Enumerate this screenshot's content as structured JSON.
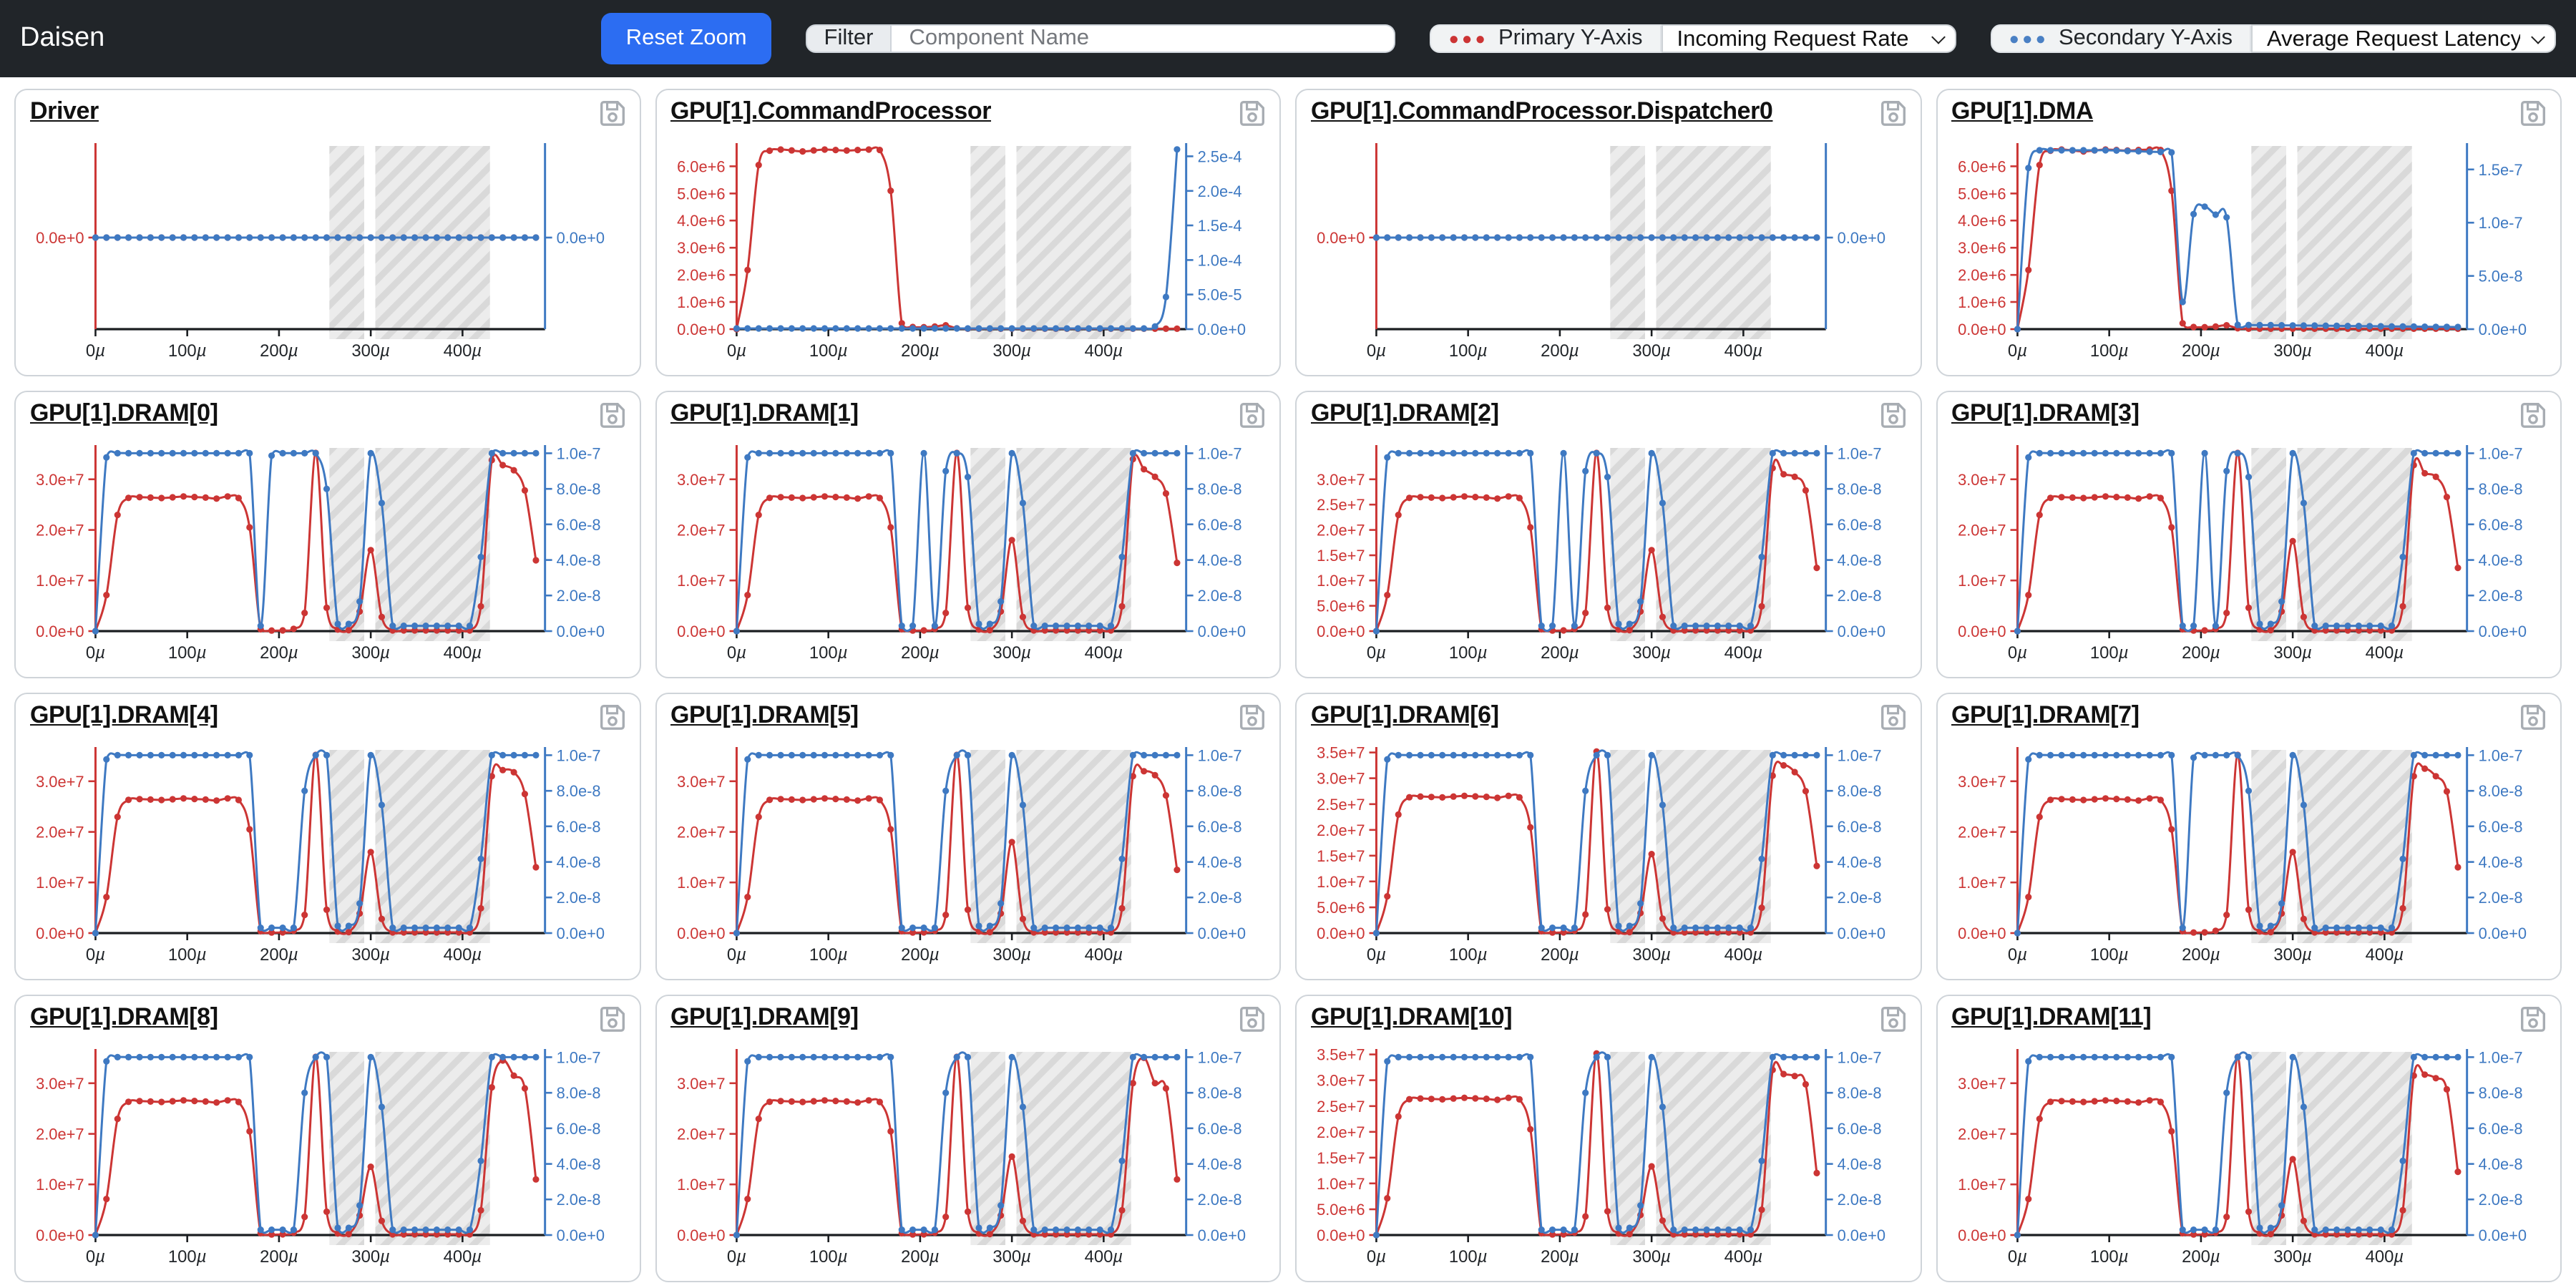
{
  "header": {
    "brand": "Daisen",
    "reset_zoom_label": "Reset Zoom",
    "filter_label": "Filter",
    "filter_placeholder": "Component Name",
    "series_dots": "●●●",
    "primary_label": "Primary Y-Axis",
    "primary_selected": "Incoming Request Rate",
    "secondary_label": "Secondary Y-Axis",
    "secondary_selected": "Average Request Latency",
    "colors": {
      "navbar_bg": "#212529",
      "accent_button": "#2c6df2",
      "primary_series": "#cc3534",
      "secondary_series": "#3e79c2"
    }
  },
  "chart_data": {
    "type": "line",
    "x_unit": "µs",
    "x_domain": [
      0,
      490
    ],
    "x_data_max": 480,
    "sample_step": 12,
    "x_ticks": [
      {
        "v": 0,
        "label": "0µ"
      },
      {
        "v": 100,
        "label": "100µ"
      },
      {
        "v": 200,
        "label": "200µ"
      },
      {
        "v": 300,
        "label": "300µ"
      },
      {
        "v": 400,
        "label": "400µ"
      }
    ],
    "highlight_bands": [
      [
        255,
        293
      ],
      [
        305,
        430
      ]
    ],
    "tick_sets": {
      "zero": [
        [
          0,
          "0.0e+0"
        ]
      ],
      "cp_red": [
        [
          0,
          "0.0e+0"
        ],
        [
          1000000.0,
          "1.0e+6"
        ],
        [
          2000000.0,
          "2.0e+6"
        ],
        [
          3000000.0,
          "3.0e+6"
        ],
        [
          4000000.0,
          "4.0e+6"
        ],
        [
          5000000.0,
          "5.0e+6"
        ],
        [
          6000000.0,
          "6.0e+6"
        ]
      ],
      "cp_blue": [
        [
          0,
          "0.0e+0"
        ],
        [
          5e-05,
          "5.0e-5"
        ],
        [
          0.0001,
          "1.0e-4"
        ],
        [
          0.00015,
          "1.5e-4"
        ],
        [
          0.0002,
          "2.0e-4"
        ],
        [
          0.00025,
          "2.5e-4"
        ]
      ],
      "dma_blue": [
        [
          0,
          "0.0e+0"
        ],
        [
          5e-08,
          "5.0e-8"
        ],
        [
          1e-07,
          "1.0e-7"
        ],
        [
          1.5e-07,
          "1.5e-7"
        ]
      ],
      "dram_sparse": [
        [
          0,
          "0.0e+0"
        ],
        [
          10000000.0,
          "1.0e+7"
        ],
        [
          20000000.0,
          "2.0e+7"
        ],
        [
          30000000.0,
          "3.0e+7"
        ]
      ],
      "dram_dense30": [
        [
          0,
          "0.0e+0"
        ],
        [
          5000000.0,
          "5.0e+6"
        ],
        [
          10000000.0,
          "1.0e+7"
        ],
        [
          15000000.0,
          "1.5e+7"
        ],
        [
          20000000.0,
          "2.0e+7"
        ],
        [
          25000000.0,
          "2.5e+7"
        ],
        [
          30000000.0,
          "3.0e+7"
        ]
      ],
      "dram_dense35": [
        [
          0,
          "0.0e+0"
        ],
        [
          5000000.0,
          "5.0e+6"
        ],
        [
          10000000.0,
          "1.0e+7"
        ],
        [
          15000000.0,
          "1.5e+7"
        ],
        [
          20000000.0,
          "2.0e+7"
        ],
        [
          25000000.0,
          "2.5e+7"
        ],
        [
          30000000.0,
          "3.0e+7"
        ],
        [
          35000000.0,
          "3.5e+7"
        ]
      ],
      "dram_blue": [
        [
          0,
          "0.0e+0"
        ],
        [
          2e-08,
          "2.0e-8"
        ],
        [
          4e-08,
          "4.0e-8"
        ],
        [
          6e-08,
          "6.0e-8"
        ],
        [
          8e-08,
          "8.0e-8"
        ],
        [
          1e-07,
          "1.0e-7"
        ]
      ]
    },
    "series_sets": {
      "zero": [
        [
          0,
          0
        ],
        [
          480,
          0
        ]
      ],
      "cp_red": [
        [
          0,
          0
        ],
        [
          8,
          100000.0
        ],
        [
          18,
          5300000.0
        ],
        [
          28,
          6550000.0
        ],
        [
          48,
          6620000.0
        ],
        [
          72,
          6550000.0
        ],
        [
          96,
          6620000.0
        ],
        [
          120,
          6580000.0
        ],
        [
          144,
          6620000.0
        ],
        [
          156,
          6600000.0
        ],
        [
          168,
          5100000.0
        ],
        [
          176,
          300000.0
        ],
        [
          186,
          90000.0
        ],
        [
          200,
          70000.0
        ],
        [
          214,
          80000.0
        ],
        [
          226,
          170000.0
        ],
        [
          234,
          60000.0
        ],
        [
          244,
          15000.0
        ],
        [
          480,
          15000.0
        ]
      ],
      "cp_blue": [
        [
          0,
          1e-06
        ],
        [
          444,
          1e-06
        ],
        [
          456,
          4e-06
        ],
        [
          466,
          2.5e-05
        ],
        [
          472,
          9e-05
        ],
        [
          477,
          0.00019
        ],
        [
          480,
          0.00026
        ]
      ],
      "dma_blue": [
        [
          0,
          0
        ],
        [
          8,
          1.3e-07
        ],
        [
          14,
          1.62e-07
        ],
        [
          24,
          1.68e-07
        ],
        [
          96,
          1.68e-07
        ],
        [
          168,
          1.66e-07
        ],
        [
          174,
          8e-08
        ],
        [
          178,
          4e-09
        ],
        [
          186,
          9e-08
        ],
        [
          192,
          1.08e-07
        ],
        [
          204,
          1.15e-07
        ],
        [
          210,
          1.07e-07
        ],
        [
          222,
          1.08e-07
        ],
        [
          230,
          1.04e-07
        ],
        [
          236,
          4e-08
        ],
        [
          240,
          4e-09
        ],
        [
          480,
          2e-09
        ]
      ],
      "dram_red": [
        [
          0,
          0
        ],
        [
          8,
          300000.0
        ],
        [
          20,
          20800000.0
        ],
        [
          30,
          26200000.0
        ],
        [
          44,
          26500000.0
        ],
        [
          72,
          26300000.0
        ],
        [
          96,
          26600000.0
        ],
        [
          120,
          26400000.0
        ],
        [
          132,
          26200000.0
        ],
        [
          144,
          26600000.0
        ],
        [
          156,
          26300000.0
        ],
        [
          168,
          20500000.0
        ],
        [
          178,
          400000.0
        ],
        [
          192,
          100000.0
        ],
        [
          204,
          150000.0
        ],
        [
          214,
          200000.0
        ],
        [
          224,
          1500000.0
        ],
        [
          228,
          3600000.0
        ],
        [
          240,
          35200000.0
        ],
        [
          252,
          4600000.0
        ],
        [
          258,
          1500000.0
        ],
        [
          264,
          300000.0
        ],
        [
          276,
          200000.0
        ],
        [
          286,
          2500000.0
        ],
        [
          294,
          8000000.0
        ],
        [
          300,
          16000000.0
        ],
        [
          306,
          8000000.0
        ],
        [
          312,
          2800000.0
        ],
        [
          320,
          150000.0
        ],
        [
          408,
          150000.0
        ],
        [
          416,
          800000.0
        ],
        [
          424,
          9000000.0
        ],
        [
          432,
          33000000.0
        ],
        [
          444,
          33000000.0
        ],
        [
          456,
          31000000.0
        ],
        [
          468,
          28000000.0
        ],
        [
          480,
          13000000.0
        ]
      ],
      "dram_blue_a": [
        [
          0,
          0
        ],
        [
          9,
          9.6e-08
        ],
        [
          16,
          1e-07
        ],
        [
          170,
          1e-07
        ],
        [
          176,
          3e-09
        ],
        [
          184,
          3e-09
        ],
        [
          190,
          9.8e-08
        ],
        [
          196,
          1e-07
        ],
        [
          248,
          1e-07
        ],
        [
          254,
          7e-08
        ],
        [
          259,
          4e-09
        ],
        [
          287,
          4e-09
        ],
        [
          293,
          8e-08
        ],
        [
          298,
          1e-07
        ],
        [
          310,
          1e-07
        ],
        [
          315,
          3e-08
        ],
        [
          319,
          3e-09
        ],
        [
          413,
          3e-09
        ],
        [
          419,
          3e-08
        ],
        [
          425,
          1e-07
        ],
        [
          480,
          1e-07
        ]
      ],
      "dram_blue_b": [
        [
          0,
          0
        ],
        [
          9,
          9.6e-08
        ],
        [
          16,
          1e-07
        ],
        [
          170,
          1e-07
        ],
        [
          176,
          3e-09
        ],
        [
          198,
          3e-09
        ],
        [
          204,
          1e-07
        ],
        [
          210,
          3e-09
        ],
        [
          222,
          3e-09
        ],
        [
          228,
          9e-08
        ],
        [
          233,
          1e-07
        ],
        [
          250,
          1e-07
        ],
        [
          256,
          6e-08
        ],
        [
          261,
          4e-09
        ],
        [
          287,
          4e-09
        ],
        [
          293,
          8e-08
        ],
        [
          298,
          1e-07
        ],
        [
          310,
          1e-07
        ],
        [
          315,
          3e-08
        ],
        [
          319,
          3e-09
        ],
        [
          413,
          3e-09
        ],
        [
          419,
          3e-08
        ],
        [
          425,
          1e-07
        ],
        [
          480,
          1e-07
        ]
      ],
      "dram_blue_c": [
        [
          0,
          0
        ],
        [
          9,
          9.6e-08
        ],
        [
          16,
          1e-07
        ],
        [
          170,
          1e-07
        ],
        [
          176,
          3e-09
        ],
        [
          222,
          3e-09
        ],
        [
          228,
          8e-08
        ],
        [
          233,
          1e-07
        ],
        [
          252,
          1e-07
        ],
        [
          257,
          6e-08
        ],
        [
          262,
          4e-09
        ],
        [
          287,
          4e-09
        ],
        [
          293,
          8e-08
        ],
        [
          298,
          1e-07
        ],
        [
          310,
          1e-07
        ],
        [
          315,
          3e-08
        ],
        [
          319,
          3e-09
        ],
        [
          413,
          3e-09
        ],
        [
          419,
          3e-08
        ],
        [
          425,
          1e-07
        ],
        [
          480,
          1e-07
        ]
      ]
    },
    "panels": [
      {
        "title": "Driver",
        "red": {
          "series": "zero",
          "max": 0,
          "ticks": "zero"
        },
        "blue": {
          "series": "zero",
          "max": 0,
          "ticks": "zero"
        }
      },
      {
        "title": "GPU[1].CommandProcessor",
        "red": {
          "series": "cp_red",
          "max": 6750000.0,
          "ticks": "cp_red"
        },
        "blue": {
          "series": "cp_blue",
          "max": 0.000265,
          "ticks": "cp_blue"
        }
      },
      {
        "title": "GPU[1].CommandProcessor.Dispatcher0",
        "red": {
          "series": "zero",
          "max": 0,
          "ticks": "zero"
        },
        "blue": {
          "series": "zero",
          "max": 0,
          "ticks": "zero"
        }
      },
      {
        "title": "GPU[1].DMA",
        "red": {
          "series": "cp_red",
          "max": 6750000.0,
          "ticks": "cp_red"
        },
        "blue": {
          "series": "dma_blue",
          "max": 1.72e-07,
          "ticks": "dma_blue"
        }
      },
      {
        "title": "GPU[1].DRAM[0]",
        "red": {
          "series": "dram_red",
          "max": 36200000.0,
          "ticks": "dram_sparse",
          "mid": 16000000.0,
          "end": [
            33800000.0,
            32800000.0,
            31800000.0,
            27800000.0,
            14000000.0
          ]
        },
        "blue": {
          "series": "dram_blue_a",
          "max": 1.03e-07,
          "ticks": "dram_blue"
        }
      },
      {
        "title": "GPU[1].DRAM[1]",
        "red": {
          "series": "dram_red",
          "max": 36200000.0,
          "ticks": "dram_sparse",
          "mid": 18000000.0,
          "end": [
            34000000.0,
            32000000.0,
            30500000.0,
            27200000.0,
            13500000.0
          ]
        },
        "blue": {
          "series": "dram_blue_b",
          "max": 1.03e-07,
          "ticks": "dram_blue"
        }
      },
      {
        "title": "GPU[1].DRAM[2]",
        "red": {
          "series": "dram_red",
          "max": 36200000.0,
          "ticks": "dram_dense30",
          "mid": 16000000.0,
          "end": [
            32200000.0,
            31000000.0,
            30500000.0,
            27800000.0,
            12500000.0
          ]
        },
        "blue": {
          "series": "dram_blue_b",
          "max": 1.03e-07,
          "ticks": "dram_blue"
        }
      },
      {
        "title": "GPU[1].DRAM[3]",
        "red": {
          "series": "dram_red",
          "max": 36200000.0,
          "ticks": "dram_sparse",
          "mid": 17800000.0,
          "end": [
            32800000.0,
            31200000.0,
            30500000.0,
            26500000.0,
            12500000.0
          ]
        },
        "blue": {
          "series": "dram_blue_b",
          "max": 1.03e-07,
          "ticks": "dram_blue"
        }
      },
      {
        "title": "GPU[1].DRAM[4]",
        "red": {
          "series": "dram_red",
          "max": 36200000.0,
          "ticks": "dram_sparse",
          "mid": 16000000.0,
          "end": [
            31000000.0,
            32200000.0,
            31800000.0,
            27500000.0,
            13000000.0
          ]
        },
        "blue": {
          "series": "dram_blue_c",
          "max": 1.03e-07,
          "ticks": "dram_blue"
        }
      },
      {
        "title": "GPU[1].DRAM[5]",
        "red": {
          "series": "dram_red",
          "max": 36200000.0,
          "ticks": "dram_sparse",
          "mid": 18000000.0,
          "end": [
            31000000.0,
            32000000.0,
            31200000.0,
            27200000.0,
            12500000.0
          ]
        },
        "blue": {
          "series": "dram_blue_c",
          "max": 1.03e-07,
          "ticks": "dram_blue"
        }
      },
      {
        "title": "GPU[1].DRAM[6]",
        "red": {
          "series": "dram_red",
          "max": 35500000.0,
          "ticks": "dram_dense35",
          "mid": 15300000.0,
          "end": [
            30500000.0,
            32500000.0,
            31200000.0,
            27500000.0,
            13000000.0
          ]
        },
        "blue": {
          "series": "dram_blue_c",
          "max": 1.03e-07,
          "ticks": "dram_blue"
        }
      },
      {
        "title": "GPU[1].DRAM[7]",
        "red": {
          "series": "dram_red",
          "max": 36200000.0,
          "ticks": "dram_sparse",
          "mid": 16000000.0,
          "end": [
            31000000.0,
            32500000.0,
            31000000.0,
            28000000.0,
            13000000.0
          ]
        },
        "blue": {
          "series": "dram_blue_a",
          "max": 1.03e-07,
          "ticks": "dram_blue"
        }
      },
      {
        "title": "GPU[1].DRAM[8]",
        "red": {
          "series": "dram_red",
          "max": 36200000.0,
          "ticks": "dram_sparse",
          "mid": 13500000.0,
          "end": [
            29200000.0,
            34500000.0,
            31500000.0,
            29000000.0,
            11000000.0
          ]
        },
        "blue": {
          "series": "dram_blue_c",
          "max": 1.03e-07,
          "ticks": "dram_blue"
        }
      },
      {
        "title": "GPU[1].DRAM[9]",
        "red": {
          "series": "dram_red",
          "max": 36200000.0,
          "ticks": "dram_sparse",
          "mid": 15500000.0,
          "end": [
            30000000.0,
            35000000.0,
            30000000.0,
            29000000.0,
            11000000.0
          ]
        },
        "blue": {
          "series": "dram_blue_c",
          "max": 1.03e-07,
          "ticks": "dram_blue"
        }
      },
      {
        "title": "GPU[1].DRAM[10]",
        "red": {
          "series": "dram_red",
          "max": 35500000.0,
          "ticks": "dram_dense35",
          "mid": 13300000.0,
          "end": [
            32000000.0,
            31200000.0,
            30800000.0,
            29200000.0,
            12000000.0
          ]
        },
        "blue": {
          "series": "dram_blue_c",
          "max": 1.03e-07,
          "ticks": "dram_blue"
        }
      },
      {
        "title": "GPU[1].DRAM[11]",
        "red": {
          "series": "dram_red",
          "max": 36200000.0,
          "ticks": "dram_sparse",
          "mid": 15000000.0,
          "end": [
            31500000.0,
            31700000.0,
            31000000.0,
            28800000.0,
            12500000.0
          ]
        },
        "blue": {
          "series": "dram_blue_c",
          "max": 1.03e-07,
          "ticks": "dram_blue"
        }
      }
    ]
  }
}
